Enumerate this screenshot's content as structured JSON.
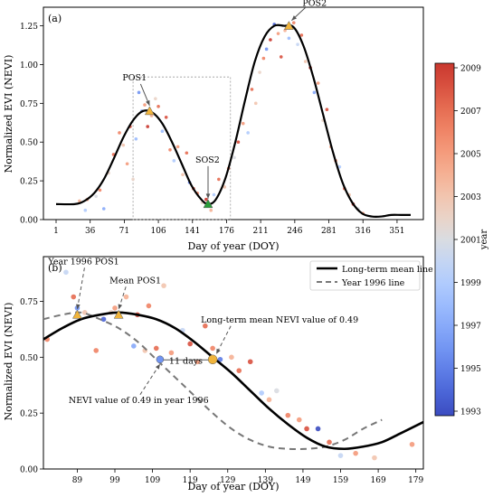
{
  "colorbar": {
    "label": "year",
    "ticks": [
      "1993",
      "1995",
      "1997",
      "1999",
      "2001",
      "2003",
      "2005",
      "2007",
      "2009"
    ],
    "years": [
      1993,
      1994,
      1995,
      1996,
      1997,
      1998,
      1999,
      2000,
      2001,
      2002,
      2003,
      2004,
      2005,
      2006,
      2007,
      2008,
      2009
    ],
    "colors": [
      "#3b4cc0",
      "#4a64d6",
      "#5d7ce6",
      "#7194f2",
      "#86a8f9",
      "#9bbbfd",
      "#b0cbfd",
      "#c4d5f3",
      "#d9dce1",
      "#ead3c7",
      "#f2c4ae",
      "#f5b093",
      "#f49a7b",
      "#ef8365",
      "#e56b51",
      "#d8503f",
      "#c9372e"
    ]
  },
  "chart_data": [
    {
      "type": "line",
      "panel_label": "(a)",
      "xlabel": "Day of year (DOY)",
      "ylabel": "Normalized EVI (NEVI)",
      "xlim": [
        -12,
        378
      ],
      "ylim": [
        0,
        1.37
      ],
      "xticks": [
        1,
        36,
        71,
        106,
        141,
        176,
        211,
        246,
        281,
        316,
        351
      ],
      "yticks": [
        "0.00",
        "0.25",
        "0.50",
        "0.75",
        "1.00",
        "1.25"
      ],
      "curve": {
        "x": [
          1,
          20,
          30,
          40,
          50,
          60,
          70,
          80,
          90,
          100,
          110,
          120,
          130,
          140,
          150,
          157,
          165,
          175,
          185,
          195,
          205,
          215,
          225,
          235,
          245,
          255,
          265,
          275,
          285,
          295,
          305,
          315,
          325,
          335,
          345,
          355,
          365
        ],
        "y": [
          0.1,
          0.1,
          0.12,
          0.17,
          0.26,
          0.39,
          0.53,
          0.64,
          0.7,
          0.69,
          0.62,
          0.5,
          0.36,
          0.22,
          0.13,
          0.1,
          0.13,
          0.27,
          0.5,
          0.77,
          1.02,
          1.18,
          1.25,
          1.25,
          1.24,
          1.12,
          0.92,
          0.68,
          0.44,
          0.24,
          0.11,
          0.04,
          0.02,
          0.02,
          0.03,
          0.03,
          0.03
        ]
      },
      "points": [
        {
          "x": 25,
          "y": 0.12,
          "year": 2004
        },
        {
          "x": 31,
          "y": 0.06,
          "year": 1999
        },
        {
          "x": 33,
          "y": 0.13,
          "year": 2005
        },
        {
          "x": 42,
          "y": 0.15,
          "year": 2001
        },
        {
          "x": 46,
          "y": 0.19,
          "year": 2006
        },
        {
          "x": 50,
          "y": 0.07,
          "year": 1997
        },
        {
          "x": 55,
          "y": 0.3,
          "year": 2002
        },
        {
          "x": 60,
          "y": 0.42,
          "year": 2007
        },
        {
          "x": 66,
          "y": 0.56,
          "year": 2006
        },
        {
          "x": 70,
          "y": 0.48,
          "year": 2003
        },
        {
          "x": 74,
          "y": 0.36,
          "year": 2005
        },
        {
          "x": 77,
          "y": 0.6,
          "year": 2008
        },
        {
          "x": 80,
          "y": 0.26,
          "year": 2002
        },
        {
          "x": 83,
          "y": 0.52,
          "year": 1998
        },
        {
          "x": 86,
          "y": 0.82,
          "year": 1996
        },
        {
          "x": 89,
          "y": 0.7,
          "year": 1997
        },
        {
          "x": 92,
          "y": 0.74,
          "year": 2005
        },
        {
          "x": 95,
          "y": 0.6,
          "year": 2009
        },
        {
          "x": 99,
          "y": 0.67,
          "year": 2004
        },
        {
          "x": 103,
          "y": 0.78,
          "year": 2002
        },
        {
          "x": 106,
          "y": 0.73,
          "year": 2007
        },
        {
          "x": 110,
          "y": 0.57,
          "year": 1998
        },
        {
          "x": 114,
          "y": 0.66,
          "year": 2008
        },
        {
          "x": 118,
          "y": 0.45,
          "year": 2006
        },
        {
          "x": 122,
          "y": 0.38,
          "year": 1999
        },
        {
          "x": 126,
          "y": 0.47,
          "year": 2005
        },
        {
          "x": 131,
          "y": 0.29,
          "year": 2003
        },
        {
          "x": 135,
          "y": 0.43,
          "year": 2007
        },
        {
          "x": 138,
          "y": 0.24,
          "year": 1995
        },
        {
          "x": 142,
          "y": 0.2,
          "year": 2008
        },
        {
          "x": 146,
          "y": 0.17,
          "year": 2006
        },
        {
          "x": 151,
          "y": 0.11,
          "year": 2002
        },
        {
          "x": 155,
          "y": 0.13,
          "year": 2009
        },
        {
          "x": 160,
          "y": 0.06,
          "year": 2004
        },
        {
          "x": 163,
          "y": 0.16,
          "year": 1999
        },
        {
          "x": 168,
          "y": 0.26,
          "year": 2007
        },
        {
          "x": 174,
          "y": 0.21,
          "year": 2003
        },
        {
          "x": 178,
          "y": 0.33,
          "year": 2006
        },
        {
          "x": 184,
          "y": 0.4,
          "year": 2001
        },
        {
          "x": 188,
          "y": 0.5,
          "year": 2008
        },
        {
          "x": 193,
          "y": 0.62,
          "year": 2005
        },
        {
          "x": 198,
          "y": 0.56,
          "year": 1999
        },
        {
          "x": 202,
          "y": 0.84,
          "year": 2007
        },
        {
          "x": 206,
          "y": 0.75,
          "year": 2003
        },
        {
          "x": 210,
          "y": 0.95,
          "year": 2002
        },
        {
          "x": 214,
          "y": 1.04,
          "year": 2006
        },
        {
          "x": 217,
          "y": 1.1,
          "year": 1996
        },
        {
          "x": 221,
          "y": 1.16,
          "year": 2009
        },
        {
          "x": 225,
          "y": 1.26,
          "year": 1994
        },
        {
          "x": 229,
          "y": 1.2,
          "year": 2005
        },
        {
          "x": 232,
          "y": 1.05,
          "year": 2008
        },
        {
          "x": 236,
          "y": 1.22,
          "year": 2004
        },
        {
          "x": 240,
          "y": 1.17,
          "year": 1998
        },
        {
          "x": 245,
          "y": 1.27,
          "year": 2006
        },
        {
          "x": 249,
          "y": 1.13,
          "year": 2000
        },
        {
          "x": 253,
          "y": 1.19,
          "year": 2007
        },
        {
          "x": 257,
          "y": 1.02,
          "year": 2003
        },
        {
          "x": 262,
          "y": 0.98,
          "year": 2009
        },
        {
          "x": 266,
          "y": 0.82,
          "year": 1997
        },
        {
          "x": 270,
          "y": 0.88,
          "year": 2005
        },
        {
          "x": 275,
          "y": 0.64,
          "year": 2002
        },
        {
          "x": 279,
          "y": 0.71,
          "year": 2008
        },
        {
          "x": 283,
          "y": 0.47,
          "year": 2004
        },
        {
          "x": 288,
          "y": 0.38,
          "year": 2006
        },
        {
          "x": 292,
          "y": 0.34,
          "year": 1999
        },
        {
          "x": 297,
          "y": 0.2,
          "year": 2007
        },
        {
          "x": 302,
          "y": 0.16,
          "year": 2003
        },
        {
          "x": 306,
          "y": 0.1,
          "year": 2009
        },
        {
          "x": 311,
          "y": 0.07,
          "year": 2001
        },
        {
          "x": 316,
          "y": 0.04,
          "year": 2005
        }
      ],
      "markers": [
        {
          "label": "POS1",
          "x": 97,
          "y": 0.7,
          "color": "#f0b43c"
        },
        {
          "label": "SOS2",
          "x": 157,
          "y": 0.1,
          "color": "#2a9d3a"
        },
        {
          "label": "POS2",
          "x": 240,
          "y": 1.25,
          "color": "#f0b43c"
        }
      ],
      "zoom_box": {
        "x0": 80,
        "x1": 180,
        "y0": 0,
        "y1": 0.92
      }
    },
    {
      "type": "line",
      "panel_label": "(b)",
      "xlabel": "Day of year (DOY)",
      "ylabel": "Normalized EVI (NEVI)",
      "xlim": [
        80,
        181
      ],
      "ylim": [
        0,
        0.95
      ],
      "xticks": [
        89,
        99,
        109,
        119,
        129,
        139,
        149,
        159,
        169,
        179
      ],
      "yticks": [
        "0.00",
        "0.25",
        "0.50",
        "0.75"
      ],
      "series": [
        {
          "name": "Long-term mean line",
          "style": "solid",
          "x": [
            80,
            85,
            90,
            95,
            100,
            105,
            110,
            115,
            120,
            125,
            130,
            135,
            140,
            145,
            150,
            155,
            160,
            165,
            170,
            175,
            181
          ],
          "y": [
            0.58,
            0.63,
            0.67,
            0.69,
            0.7,
            0.69,
            0.67,
            0.63,
            0.57,
            0.5,
            0.43,
            0.35,
            0.27,
            0.2,
            0.14,
            0.1,
            0.09,
            0.1,
            0.12,
            0.16,
            0.21
          ]
        },
        {
          "name": "Year 1996 line",
          "style": "dashed",
          "x": [
            80,
            85,
            90,
            95,
            100,
            105,
            110,
            115,
            120,
            125,
            130,
            135,
            140,
            145,
            150,
            155,
            160,
            165,
            170
          ],
          "y": [
            0.67,
            0.69,
            0.7,
            0.67,
            0.63,
            0.57,
            0.49,
            0.41,
            0.33,
            0.25,
            0.18,
            0.13,
            0.1,
            0.09,
            0.09,
            0.1,
            0.13,
            0.18,
            0.22
          ]
        }
      ],
      "points": [
        {
          "x": 81,
          "y": 0.58,
          "year": 2006
        },
        {
          "x": 86,
          "y": 0.88,
          "year": 2000
        },
        {
          "x": 88,
          "y": 0.77,
          "year": 2007
        },
        {
          "x": 89,
          "y": 0.72,
          "year": 1996
        },
        {
          "x": 91,
          "y": 0.7,
          "year": 2003
        },
        {
          "x": 94,
          "y": 0.53,
          "year": 2006
        },
        {
          "x": 96,
          "y": 0.67,
          "year": 1994
        },
        {
          "x": 98,
          "y": 0.7,
          "year": 2002
        },
        {
          "x": 99,
          "y": 0.72,
          "year": 2005
        },
        {
          "x": 102,
          "y": 0.77,
          "year": 2004
        },
        {
          "x": 104,
          "y": 0.55,
          "year": 1997
        },
        {
          "x": 105,
          "y": 0.69,
          "year": 2008
        },
        {
          "x": 107,
          "y": 0.53,
          "year": 2003
        },
        {
          "x": 108,
          "y": 0.73,
          "year": 2006
        },
        {
          "x": 110,
          "y": 0.54,
          "year": 2007
        },
        {
          "x": 112,
          "y": 0.82,
          "year": 2003
        },
        {
          "x": 114,
          "y": 0.52,
          "year": 2005
        },
        {
          "x": 117,
          "y": 0.62,
          "year": 2000
        },
        {
          "x": 119,
          "y": 0.56,
          "year": 2008
        },
        {
          "x": 121,
          "y": 0.48,
          "year": 2005
        },
        {
          "x": 123,
          "y": 0.64,
          "year": 2007
        },
        {
          "x": 125,
          "y": 0.54,
          "year": 2006
        },
        {
          "x": 127,
          "y": 0.49,
          "year": 1995
        },
        {
          "x": 130,
          "y": 0.5,
          "year": 2004
        },
        {
          "x": 132,
          "y": 0.44,
          "year": 2007
        },
        {
          "x": 135,
          "y": 0.48,
          "year": 2008
        },
        {
          "x": 138,
          "y": 0.34,
          "year": 1999
        },
        {
          "x": 140,
          "y": 0.31,
          "year": 2004
        },
        {
          "x": 142,
          "y": 0.35,
          "year": 2001
        },
        {
          "x": 145,
          "y": 0.24,
          "year": 2006
        },
        {
          "x": 148,
          "y": 0.22,
          "year": 2005
        },
        {
          "x": 150,
          "y": 0.18,
          "year": 2008
        },
        {
          "x": 153,
          "y": 0.18,
          "year": 1993
        },
        {
          "x": 156,
          "y": 0.12,
          "year": 2007
        },
        {
          "x": 159,
          "y": 0.06,
          "year": 2000
        },
        {
          "x": 163,
          "y": 0.07,
          "year": 2005
        },
        {
          "x": 168,
          "y": 0.05,
          "year": 2003
        },
        {
          "x": 178,
          "y": 0.11,
          "year": 2005
        }
      ],
      "markers": [
        {
          "label": "Year 1996 POS1",
          "x": 89,
          "y": 0.69,
          "color": "#f0b43c",
          "shape": "triangle"
        },
        {
          "label": "Mean POS1",
          "x": 100,
          "y": 0.69,
          "color": "#f0b43c",
          "shape": "triangle"
        },
        {
          "label": "Long-term mean NEVI value of 0.49",
          "x": 125,
          "y": 0.49,
          "color": "#f0b43c",
          "shape": "circle"
        },
        {
          "label": "NEVI value of 0.49 in year 1996",
          "x": 111,
          "y": 0.49,
          "color": "#7194f2",
          "shape": "circle"
        }
      ],
      "days_label": "11 days"
    }
  ]
}
